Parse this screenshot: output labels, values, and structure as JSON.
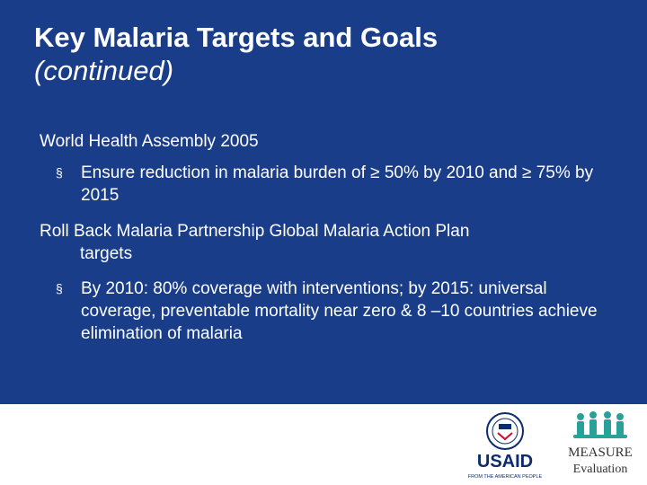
{
  "slide": {
    "title": "Key Malaria Targets and Goals",
    "subtitle": "(continued)"
  },
  "sections": [
    {
      "heading": "World Health Assembly 2005",
      "bullet": "Ensure reduction in malaria burden of ≥ 50% by 2010 and ≥ 75% by 2015"
    },
    {
      "heading_line1": "Roll Back Malaria Partnership  Global Malaria Action Plan",
      "heading_line2": "targets",
      "bullet": "By 2010: 80% coverage with interventions; by 2015: universal coverage, preventable mortality near zero & 8 –10 countries achieve elimination of malaria"
    }
  ],
  "bullet_glyph": "§",
  "footer": {
    "usaid_wordmark": "USAID",
    "usaid_tagline": "FROM THE AMERICAN PEOPLE",
    "measure_wordmark": "MEASURE",
    "measure_sub": "Evaluation"
  },
  "colors": {
    "background": "#1a3d8a",
    "text": "#ffffff",
    "usaid_blue": "#0b2d6b",
    "usaid_red": "#c8102e",
    "measure_teal": "#2aa198"
  }
}
